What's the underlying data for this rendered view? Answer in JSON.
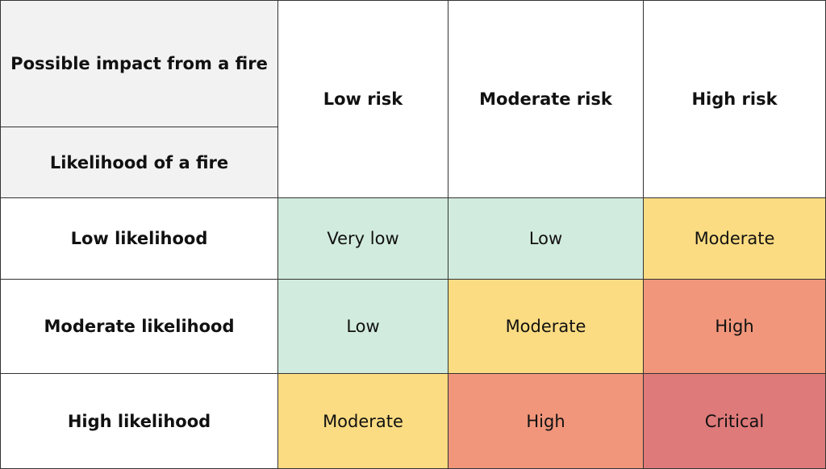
{
  "matrix": {
    "corner_impact_label": "Possible impact from a fire",
    "corner_likelihood_label": "Likelihood of a fire",
    "columns": [
      "Low risk",
      "Moderate risk",
      "High risk"
    ],
    "rows": [
      {
        "label": "Low likelihood",
        "values": [
          "Very low",
          "Low",
          "Moderate"
        ]
      },
      {
        "label": "Moderate likelihood",
        "values": [
          "Low",
          "Moderate",
          "High"
        ]
      },
      {
        "label": "High likelihood",
        "values": [
          "Moderate",
          "High",
          "Critical"
        ]
      }
    ]
  },
  "colors": {
    "Very low": "#d1ebde",
    "Low": "#d1ebde",
    "Moderate": "#fcdc82",
    "High": "#f1967b",
    "Critical": "#de7a7a",
    "header_bg": "#f2f2f2"
  }
}
